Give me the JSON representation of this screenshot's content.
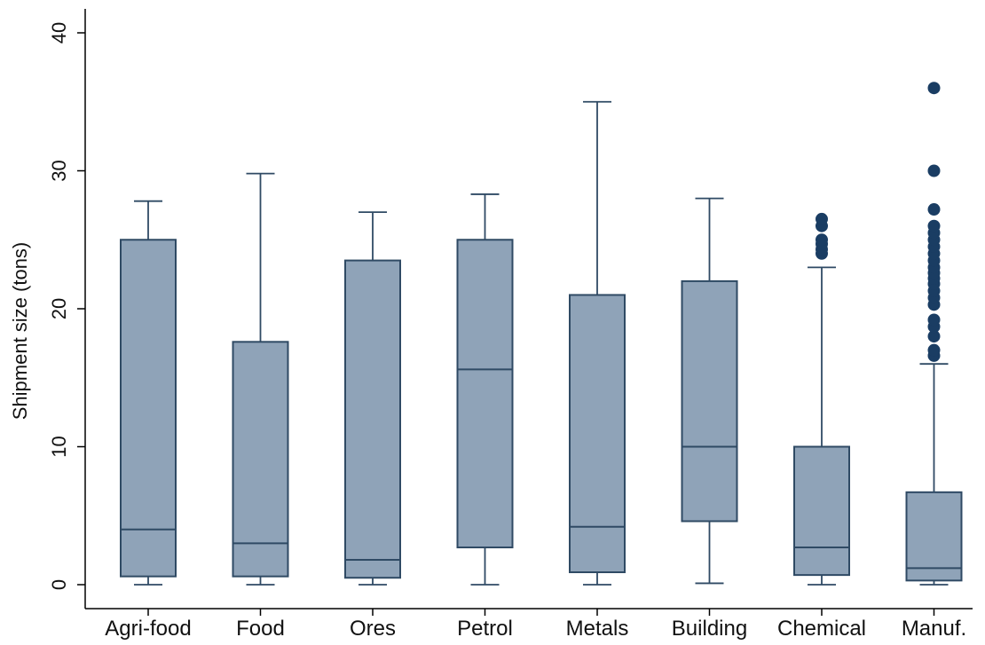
{
  "chart_data": {
    "type": "box",
    "title": "",
    "xlabel": "",
    "ylabel": "Shipment size (tons)",
    "ylim": [
      0,
      40
    ],
    "yticks": [
      0,
      10,
      20,
      30,
      40
    ],
    "grid": false,
    "colors": {
      "box_fill": "#8fa3b8",
      "box_stroke": "#2f4a64",
      "outlier": "#1a3d63",
      "axis": "#000000"
    },
    "categories": [
      "Agri-food",
      "Food",
      "Ores",
      "Petrol",
      "Metals",
      "Building",
      "Chemical",
      "Manuf."
    ],
    "boxes": [
      {
        "category": "Agri-food",
        "whisker_low": 0,
        "q1": 0.6,
        "median": 4.0,
        "q3": 25.0,
        "whisker_high": 27.8,
        "outliers": []
      },
      {
        "category": "Food",
        "whisker_low": 0,
        "q1": 0.6,
        "median": 3.0,
        "q3": 17.6,
        "whisker_high": 29.8,
        "outliers": []
      },
      {
        "category": "Ores",
        "whisker_low": 0,
        "q1": 0.5,
        "median": 1.8,
        "q3": 23.5,
        "whisker_high": 27.0,
        "outliers": []
      },
      {
        "category": "Petrol",
        "whisker_low": 0,
        "q1": 2.7,
        "median": 15.6,
        "q3": 25.0,
        "whisker_high": 28.3,
        "outliers": []
      },
      {
        "category": "Metals",
        "whisker_low": 0,
        "q1": 0.9,
        "median": 4.2,
        "q3": 21.0,
        "whisker_high": 35.0,
        "outliers": []
      },
      {
        "category": "Building",
        "whisker_low": 0.1,
        "q1": 4.6,
        "median": 10.0,
        "q3": 22.0,
        "whisker_high": 28.0,
        "outliers": []
      },
      {
        "category": "Chemical",
        "whisker_low": 0,
        "q1": 0.7,
        "median": 2.7,
        "q3": 10.0,
        "whisker_high": 23.0,
        "outliers": [
          24.0,
          24.3,
          24.7,
          25.0,
          26.0,
          26.5
        ]
      },
      {
        "category": "Manuf.",
        "whisker_low": 0,
        "q1": 0.3,
        "median": 1.2,
        "q3": 6.7,
        "whisker_high": 16.0,
        "outliers": [
          16.6,
          17.0,
          18.0,
          18.7,
          19.2,
          20.3,
          20.8,
          21.3,
          21.8,
          22.2,
          22.6,
          23.0,
          23.5,
          24.0,
          24.5,
          25.0,
          25.5,
          26.0,
          27.2,
          30.0,
          36.0
        ]
      }
    ]
  }
}
